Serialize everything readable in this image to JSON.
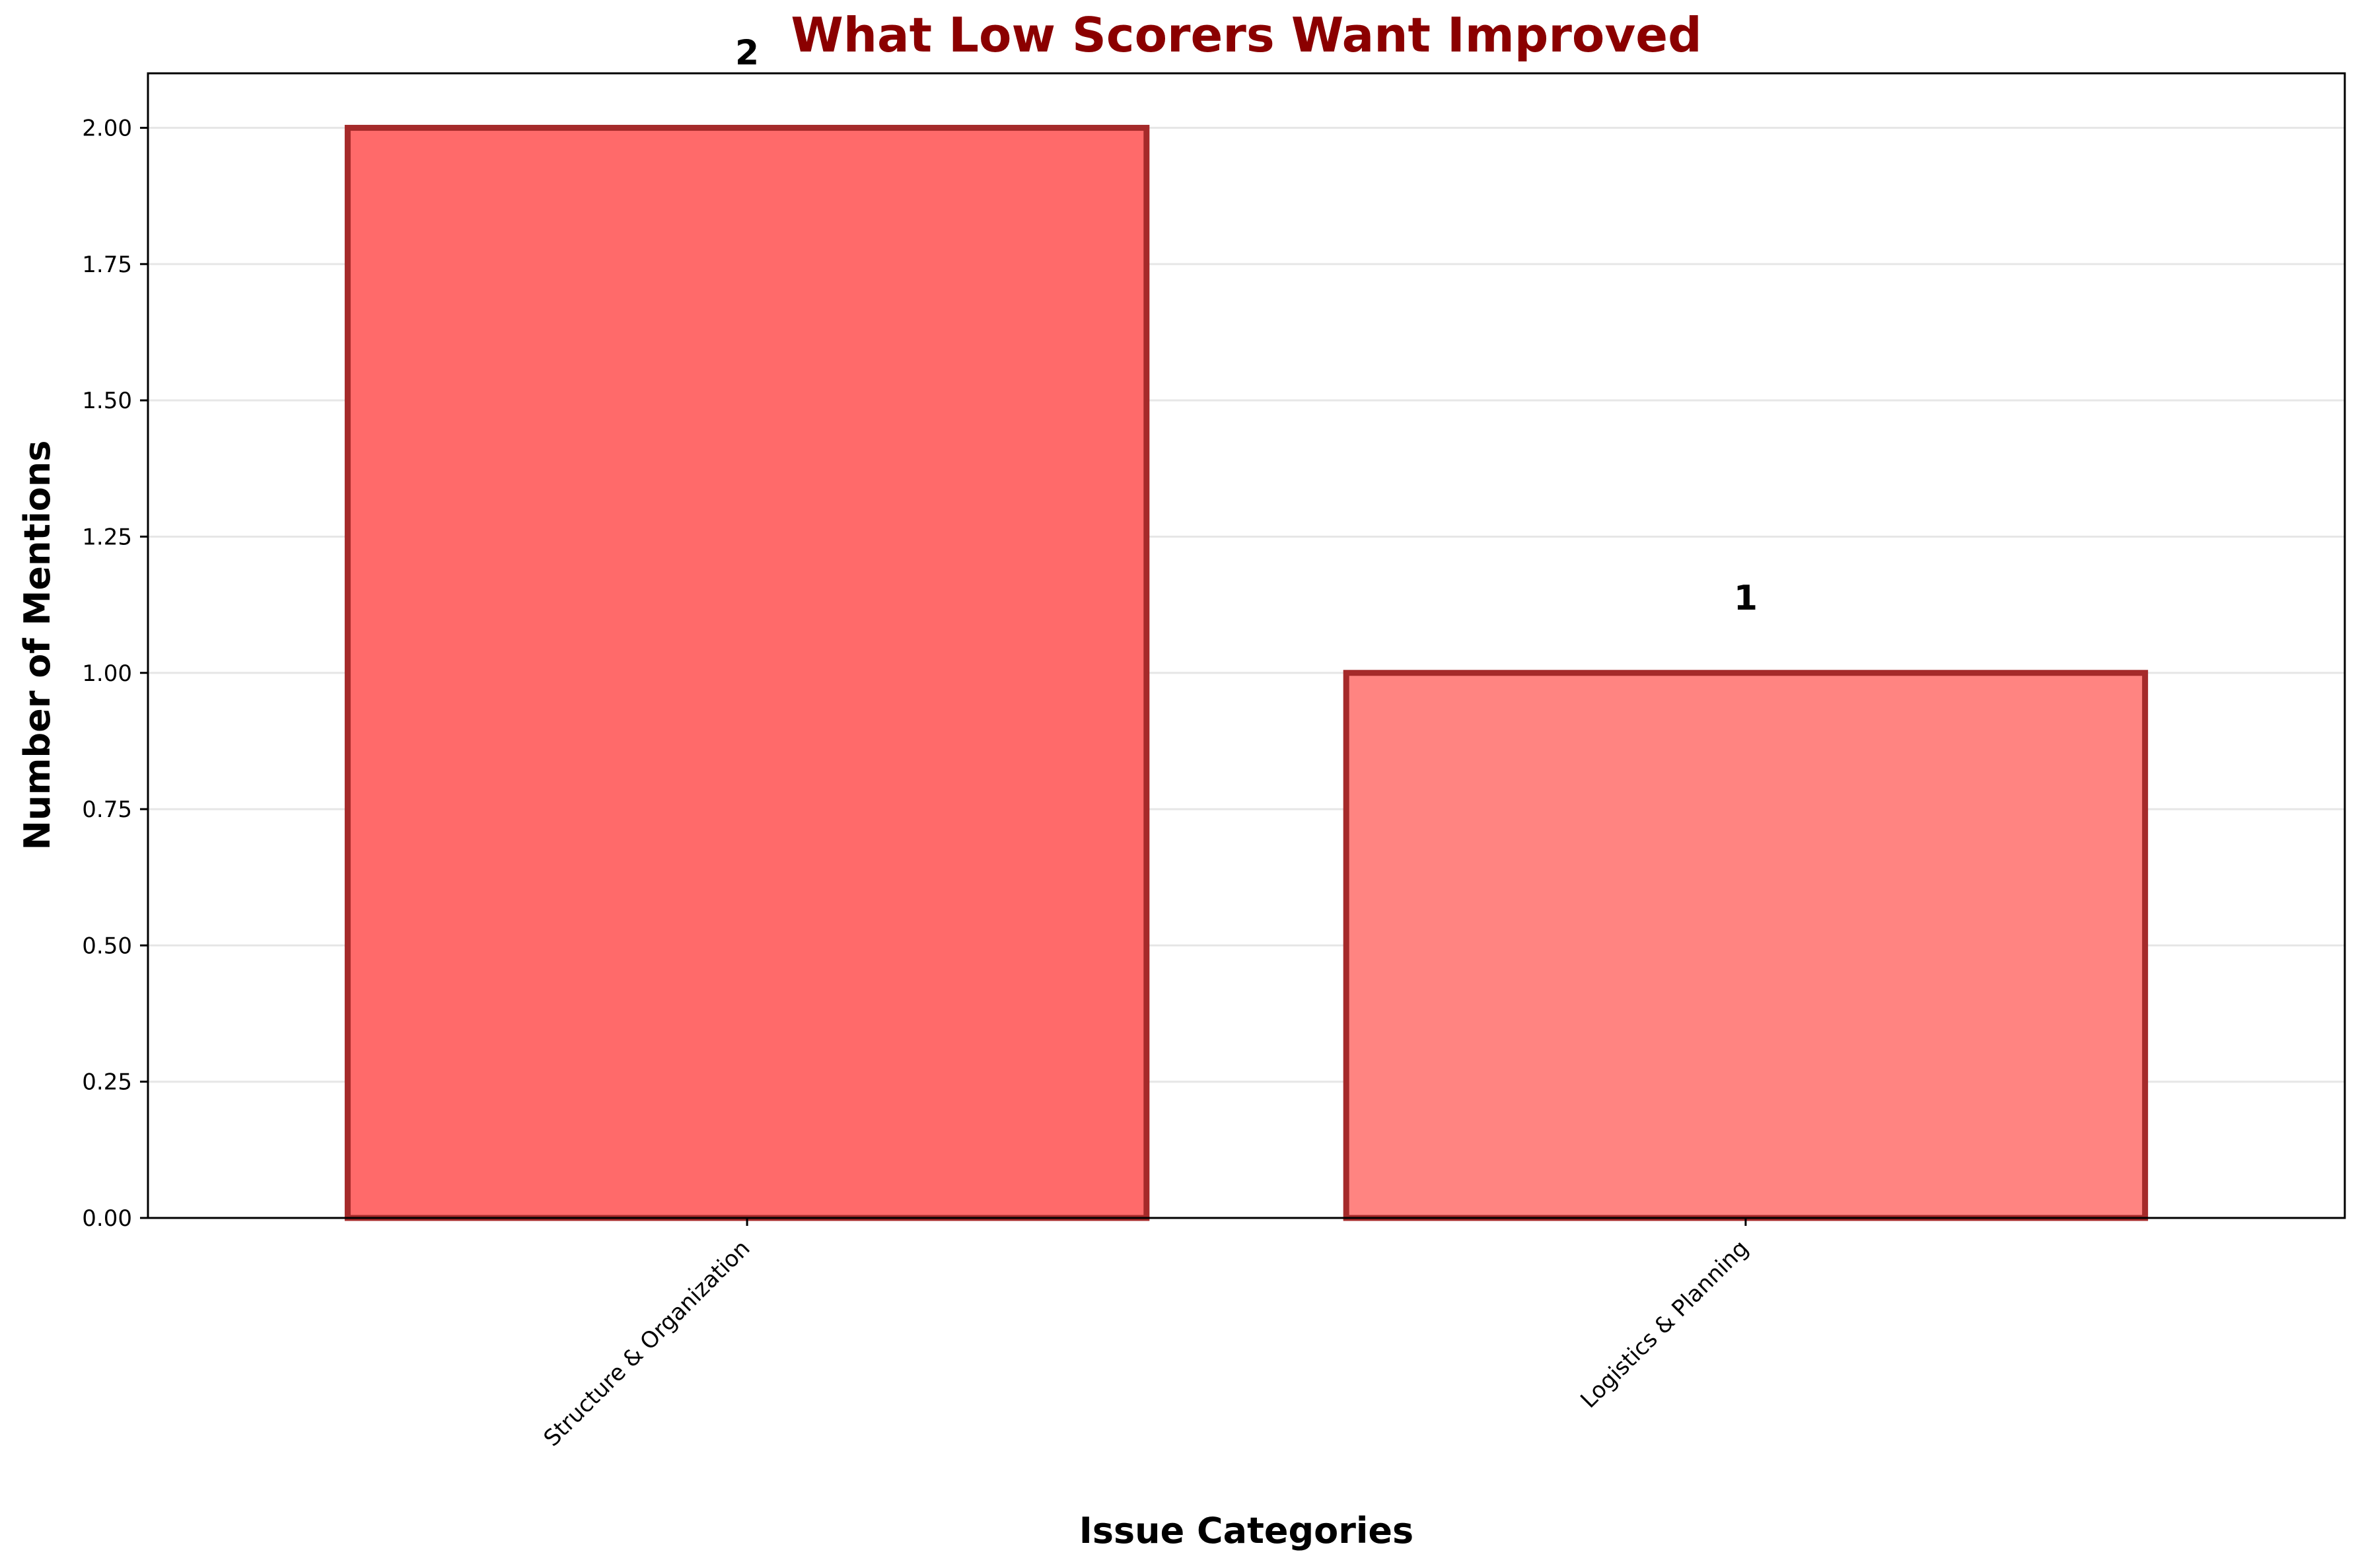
{
  "chart_data": {
    "type": "bar",
    "title": "What Low Scorers Want Improved",
    "xlabel": "Issue Categories",
    "ylabel": "Number of Mentions",
    "categories": [
      "Structure & Organization",
      "Logistics & Planning"
    ],
    "values": [
      2,
      1
    ],
    "data_labels": [
      "2",
      "1"
    ],
    "ylim": [
      0,
      2.1
    ],
    "yticks": [
      "0.00",
      "0.25",
      "0.50",
      "0.75",
      "1.00",
      "1.25",
      "1.50",
      "1.75",
      "2.00"
    ],
    "ytick_values": [
      0,
      0.25,
      0.5,
      0.75,
      1.0,
      1.25,
      1.5,
      1.75,
      2.0
    ],
    "grid": "y",
    "legend": "none",
    "colors": {
      "title": "#8b0000",
      "bars": [
        "#ff6a6a",
        "#ff8481"
      ],
      "bar_edge": "#a52a2a",
      "grid": "#e6e6e6",
      "axis": "#000000"
    }
  }
}
